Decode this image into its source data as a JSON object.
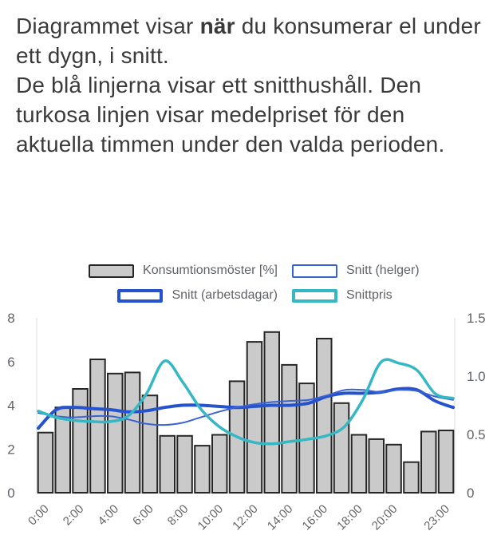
{
  "intro": {
    "p1_pre": "Diagrammet visar ",
    "p1_bold": "när",
    "p1_post": " du konsumerar el under ett dygn, i snitt.",
    "p2": "De blå linjerna visar ett snitthushåll. Den turkosa linjen visar medelpriset för den aktuella timmen under den valda perioden."
  },
  "legend": {
    "items": [
      {
        "label": "Konsumtionsmöster [%]",
        "swatch": "bar"
      },
      {
        "label": "Snitt (helger)",
        "swatch": "helger"
      },
      {
        "label": "Snitt (arbetsdagar)",
        "swatch": "arbetsdagar"
      },
      {
        "label": "Snittpris",
        "swatch": "snittpris"
      }
    ]
  },
  "colors": {
    "bar_fill": "#cacaca",
    "bar_border": "#262626",
    "line_workday_blue": "#2653cd",
    "line_weekend_blue": "#3a62d3",
    "line_price_turquoise": "#35b7c4",
    "axis_text": "#5f6368",
    "axis_line": "#dedede",
    "intro_text": "#3a3a3a"
  },
  "chart_data": {
    "type": "bar",
    "title": "",
    "xlabel": "",
    "ylabel_left": "",
    "ylabel_right": "",
    "categories": [
      "0:00",
      "1:00",
      "2:00",
      "3:00",
      "4:00",
      "5:00",
      "6:00",
      "7:00",
      "8:00",
      "9:00",
      "10:00",
      "11:00",
      "12:00",
      "13:00",
      "14:00",
      "15:00",
      "16:00",
      "17:00",
      "18:00",
      "19:00",
      "20:00",
      "21:00",
      "22:00",
      "23:00"
    ],
    "x_tick_hours": [
      0,
      2,
      4,
      6,
      8,
      10,
      12,
      14,
      16,
      18,
      20,
      23
    ],
    "x_tick_labels": [
      "0:00",
      "2:00",
      "4:00",
      "6:00",
      "8:00",
      "10:00",
      "12:00",
      "14:00",
      "16:00",
      "18:00",
      "20:00",
      "23:00"
    ],
    "left_axis": {
      "range": [
        0,
        8
      ],
      "ticks": [
        0,
        2,
        4,
        6,
        8
      ],
      "tick_labels": [
        "0",
        "2",
        "4",
        "6",
        "8"
      ]
    },
    "right_axis": {
      "range": [
        0,
        1.5
      ],
      "ticks": [
        0,
        0.5,
        1.0,
        1.5
      ],
      "tick_labels": [
        "0",
        "0.5",
        "1.0",
        "1.5"
      ]
    },
    "grid": false,
    "legend_position": "top",
    "series": [
      {
        "name": "Konsumtionsmöster [%]",
        "type": "bar",
        "axis": "left",
        "color": "#cacaca",
        "border": "#262626",
        "values": [
          2.75,
          3.9,
          4.75,
          6.1,
          5.45,
          5.5,
          4.45,
          2.6,
          2.6,
          2.15,
          2.65,
          5.1,
          6.9,
          7.35,
          5.85,
          5.0,
          7.05,
          4.1,
          2.65,
          2.45,
          2.2,
          1.4,
          2.8,
          2.85
        ]
      },
      {
        "name": "Snitt (arbetsdagar)",
        "type": "line",
        "axis": "left",
        "color": "#2653cd",
        "width": 4,
        "values": [
          2.95,
          3.8,
          3.9,
          3.85,
          3.8,
          3.7,
          3.75,
          3.9,
          4.0,
          4.0,
          3.95,
          3.9,
          3.95,
          4.0,
          4.0,
          4.1,
          4.4,
          4.55,
          4.55,
          4.6,
          4.75,
          4.7,
          4.2,
          3.9
        ]
      },
      {
        "name": "Snitt (helger)",
        "type": "line",
        "axis": "left",
        "color": "#3a62d3",
        "width": 2,
        "values": [
          3.65,
          3.5,
          3.45,
          3.5,
          3.5,
          3.35,
          3.15,
          3.1,
          3.2,
          3.45,
          3.7,
          3.9,
          4.05,
          4.15,
          4.2,
          4.25,
          4.45,
          4.7,
          4.7,
          4.6,
          4.7,
          4.65,
          4.4,
          4.25
        ]
      },
      {
        "name": "Snittpris",
        "type": "line",
        "axis": "right",
        "color": "#35b7c4",
        "width": 3.5,
        "values": [
          0.7,
          0.645,
          0.62,
          0.61,
          0.61,
          0.66,
          0.85,
          1.13,
          0.95,
          0.72,
          0.57,
          0.48,
          0.43,
          0.42,
          0.44,
          0.46,
          0.49,
          0.57,
          0.8,
          1.12,
          1.11,
          1.05,
          0.85,
          0.81
        ]
      }
    ]
  }
}
